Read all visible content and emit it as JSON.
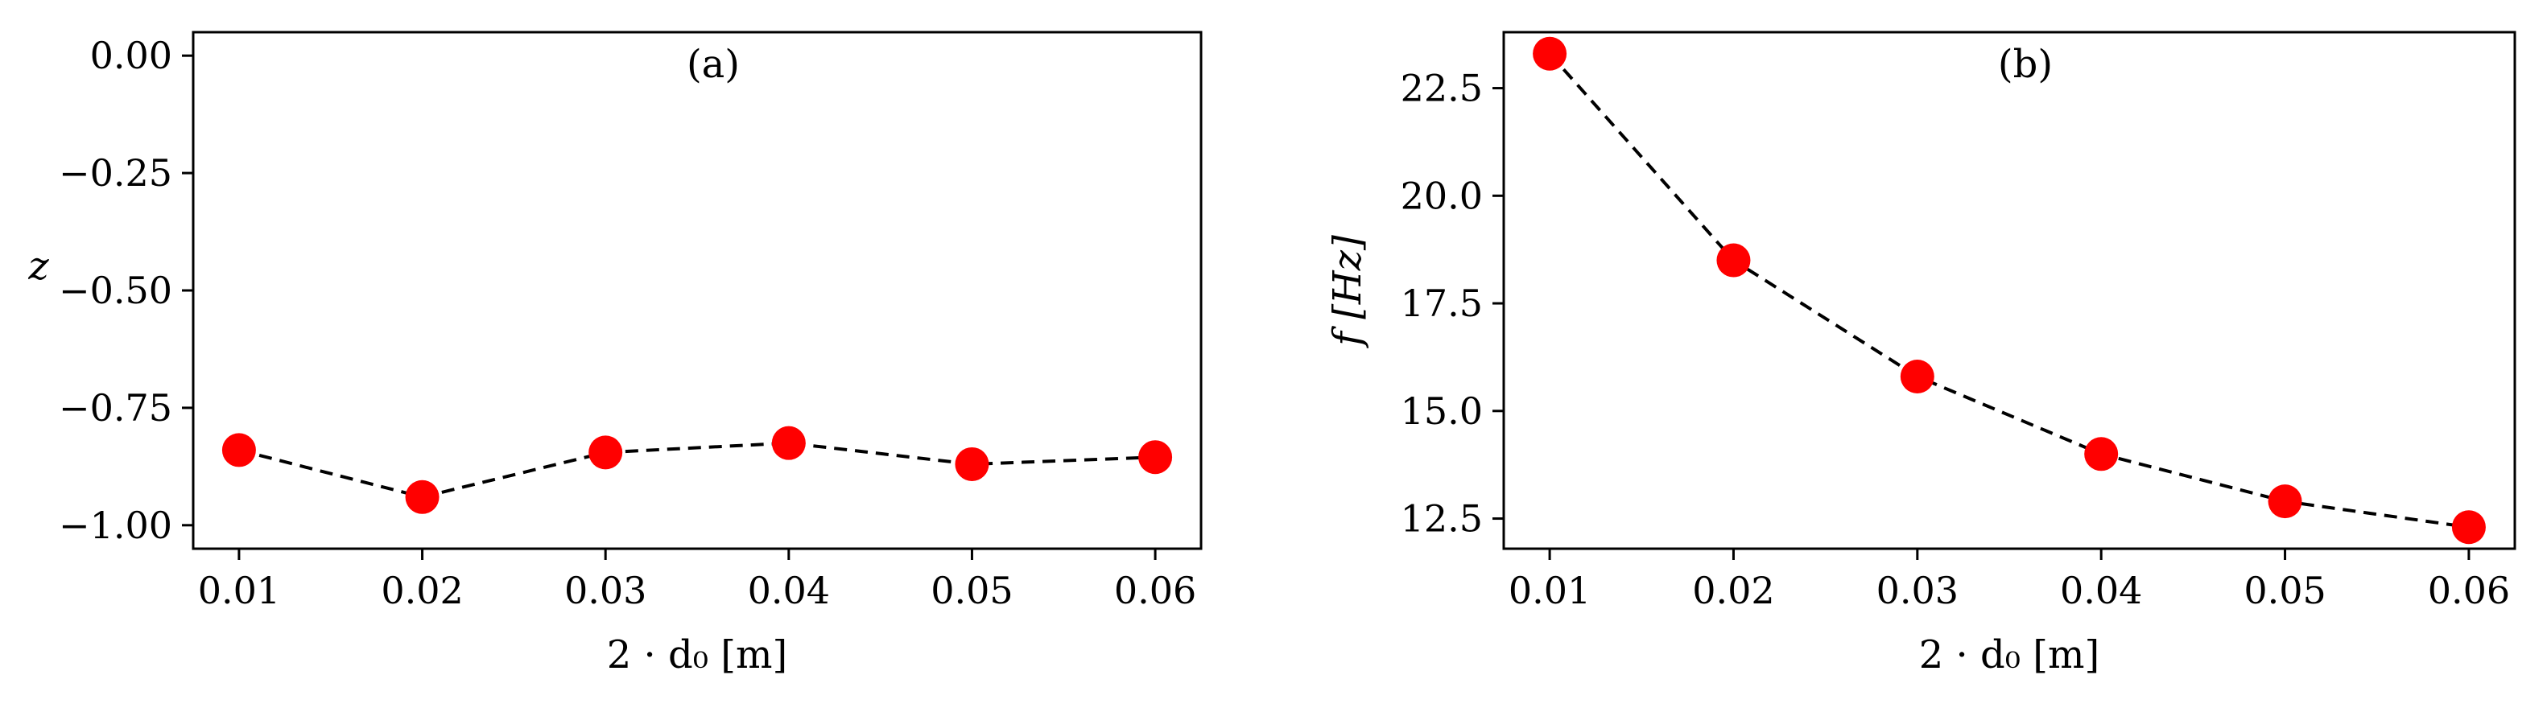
{
  "colors": {
    "marker": "#ff0000",
    "line": "#000000"
  },
  "chart_data": [
    {
      "type": "line",
      "panel_label": "(a)",
      "xlabel": "2 · d₀ [m]",
      "ylabel": "z",
      "x": [
        0.01,
        0.02,
        0.03,
        0.04,
        0.05,
        0.06
      ],
      "series": [
        {
          "values": [
            -0.84,
            -0.94,
            -0.845,
            -0.825,
            -0.87,
            -0.855
          ]
        }
      ],
      "xlim": [
        0.0075,
        0.0625
      ],
      "ylim": [
        -1.05,
        0.05
      ],
      "xticks": [
        0.01,
        0.02,
        0.03,
        0.04,
        0.05,
        0.06
      ],
      "xtick_labels": [
        "0.01",
        "0.02",
        "0.03",
        "0.04",
        "0.05",
        "0.06"
      ],
      "yticks": [
        0.0,
        -0.25,
        -0.5,
        -0.75,
        -1.0
      ],
      "ytick_labels": [
        "0.00",
        "−0.25",
        "−0.50",
        "−0.75",
        "−1.00"
      ],
      "line_style": "dashed",
      "marker": "circle",
      "grid": false
    },
    {
      "type": "line",
      "panel_label": "(b)",
      "xlabel": "2 · d₀ [m]",
      "ylabel": "f [Hz]",
      "x": [
        0.01,
        0.02,
        0.03,
        0.04,
        0.05,
        0.06
      ],
      "series": [
        {
          "values": [
            23.3,
            18.5,
            15.8,
            14.0,
            12.9,
            12.3
          ]
        }
      ],
      "xlim": [
        0.0075,
        0.0625
      ],
      "ylim": [
        11.8,
        23.8
      ],
      "xticks": [
        0.01,
        0.02,
        0.03,
        0.04,
        0.05,
        0.06
      ],
      "xtick_labels": [
        "0.01",
        "0.02",
        "0.03",
        "0.04",
        "0.05",
        "0.06"
      ],
      "yticks": [
        12.5,
        15.0,
        17.5,
        20.0,
        22.5
      ],
      "ytick_labels": [
        "12.5",
        "15.0",
        "17.5",
        "20.0",
        "22.5"
      ],
      "line_style": "dashed",
      "marker": "circle",
      "grid": false
    }
  ]
}
